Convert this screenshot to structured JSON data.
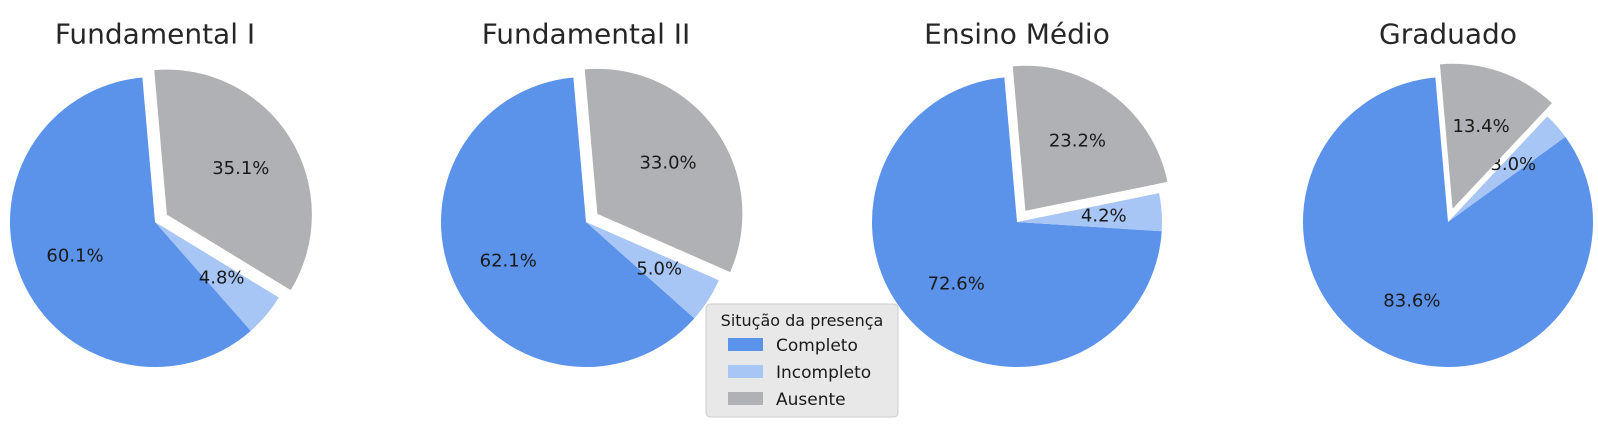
{
  "chart_data": [
    {
      "type": "pie",
      "title": "Fundamental I",
      "slices": [
        {
          "label": "Completo",
          "value": 60.1,
          "display": "60.1%"
        },
        {
          "label": "Incompleto",
          "value": 4.8,
          "display": "4.8%"
        },
        {
          "label": "Ausente",
          "value": 35.1,
          "display": "35.1%",
          "exploded": true
        }
      ]
    },
    {
      "type": "pie",
      "title": "Fundamental II",
      "slices": [
        {
          "label": "Completo",
          "value": 62.1,
          "display": "62.1%"
        },
        {
          "label": "Incompleto",
          "value": 5.0,
          "display": "5.0%"
        },
        {
          "label": "Ausente",
          "value": 33.0,
          "display": "33.0%",
          "exploded": true
        }
      ]
    },
    {
      "type": "pie",
      "title": "Ensino Médio",
      "slices": [
        {
          "label": "Completo",
          "value": 72.6,
          "display": "72.6%"
        },
        {
          "label": "Incompleto",
          "value": 4.2,
          "display": "4.2%"
        },
        {
          "label": "Ausente",
          "value": 23.2,
          "display": "23.2%",
          "exploded": true
        }
      ]
    },
    {
      "type": "pie",
      "title": "Graduado",
      "slices": [
        {
          "label": "Completo",
          "value": 83.6,
          "display": "83.6%"
        },
        {
          "label": "Incompleto",
          "value": 3.0,
          "display": "3.0%"
        },
        {
          "label": "Ausente",
          "value": 13.4,
          "display": "13.4%",
          "exploded": true
        }
      ]
    }
  ],
  "legend": {
    "title": "Situção da presença",
    "placement": "bottom-center",
    "entries": [
      {
        "label": "Completo",
        "color": "#5b92ea"
      },
      {
        "label": "Incompleto",
        "color": "#a7c5f5"
      },
      {
        "label": "Ausente",
        "color": "#b0b1b4"
      }
    ]
  },
  "colors": {
    "Completo": "#5b92ea",
    "Incompleto": "#a7c5f5",
    "Ausente": "#b0b1b4"
  }
}
